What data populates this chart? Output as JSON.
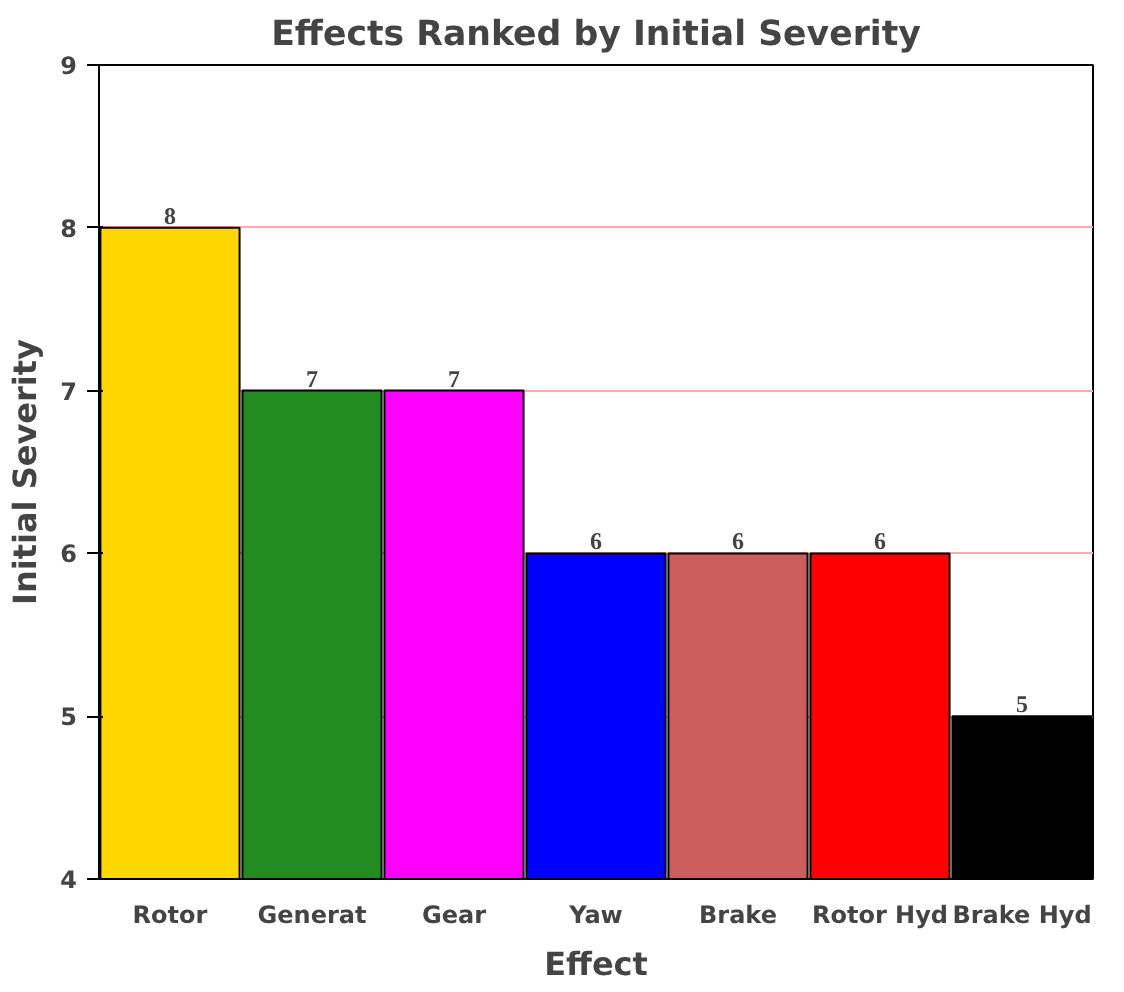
{
  "chart_data": {
    "type": "bar",
    "title": "Effects Ranked by Initial Severity",
    "xlabel": "Effect",
    "ylabel": "Initial Severity",
    "categories": [
      "Rotor",
      "Generat",
      "Gear",
      "Yaw",
      "Brake",
      "Rotor Hyd",
      "Brake Hyd"
    ],
    "values": [
      8,
      7,
      7,
      6,
      6,
      6,
      5
    ],
    "colors": [
      "#ffd700",
      "#228b22",
      "#ff00ff",
      "#0000ff",
      "#cd5c5c",
      "#ff0000",
      "#000000"
    ],
    "ylim": [
      4,
      9
    ],
    "yticks": [
      4,
      5,
      6,
      7,
      8,
      9
    ],
    "grid": "y",
    "data_labels": true
  }
}
